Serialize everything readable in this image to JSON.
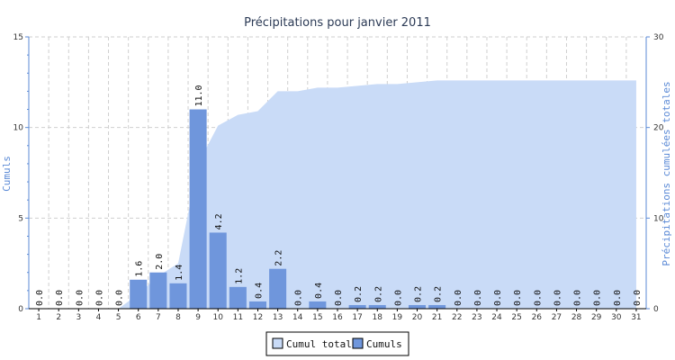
{
  "chart_data": {
    "type": "bar",
    "title": "Précipitations pour janvier 2011",
    "xlabel": "",
    "ylabel": "Cumuls",
    "y2label": "Précipitations cumulées totales",
    "ylim": [
      0,
      15
    ],
    "y2lim": [
      0,
      30
    ],
    "yticks": [
      "0",
      "5",
      "10",
      "15"
    ],
    "y2ticks": [
      "0",
      "10",
      "20",
      "30"
    ],
    "categories": [
      "1",
      "2",
      "3",
      "4",
      "5",
      "6",
      "7",
      "8",
      "9",
      "10",
      "11",
      "12",
      "13",
      "14",
      "15",
      "16",
      "17",
      "18",
      "19",
      "20",
      "21",
      "22",
      "23",
      "24",
      "25",
      "26",
      "27",
      "28",
      "29",
      "30",
      "31"
    ],
    "grid": true,
    "legend_position": "bottom",
    "series": [
      {
        "name": "Cumuls",
        "type": "bar",
        "axis": "left",
        "color": "#6f96dc",
        "values": [
          0.0,
          0.0,
          0.0,
          0.0,
          0.0,
          1.6,
          2.0,
          1.4,
          11.0,
          4.2,
          1.2,
          0.4,
          2.2,
          0.0,
          0.4,
          0.0,
          0.2,
          0.2,
          0.0,
          0.2,
          0.2,
          0.0,
          0.0,
          0.0,
          0.0,
          0.0,
          0.0,
          0.0,
          0.0,
          0.0,
          0.0
        ],
        "labels": [
          "0.0",
          "0.0",
          "0.0",
          "0.0",
          "0.0",
          "1.6",
          "2.0",
          "1.4",
          "11.0",
          "4.2",
          "1.2",
          "0.4",
          "2.2",
          "0.0",
          "0.4",
          "0.0",
          "0.2",
          "0.2",
          "0.0",
          "0.2",
          "0.2",
          "0.0",
          "0.0",
          "0.0",
          "0.0",
          "0.0",
          "0.0",
          "0.0",
          "0.0",
          "0.0",
          "0.0"
        ]
      },
      {
        "name": "Cumul total",
        "type": "area",
        "axis": "right",
        "color": "#c9dbf7",
        "values": [
          0.0,
          0.0,
          0.0,
          0.0,
          0.0,
          1.6,
          3.6,
          5.0,
          16.0,
          20.2,
          21.4,
          21.8,
          24.0,
          24.0,
          24.4,
          24.4,
          24.6,
          24.8,
          24.8,
          25.0,
          25.2,
          25.2,
          25.2,
          25.2,
          25.2,
          25.2,
          25.2,
          25.2,
          25.2,
          25.2,
          25.2
        ]
      }
    ],
    "legend": [
      {
        "name": "Cumul total",
        "color": "#c9dbf7"
      },
      {
        "name": "Cumuls",
        "color": "#6f96dc"
      }
    ]
  }
}
